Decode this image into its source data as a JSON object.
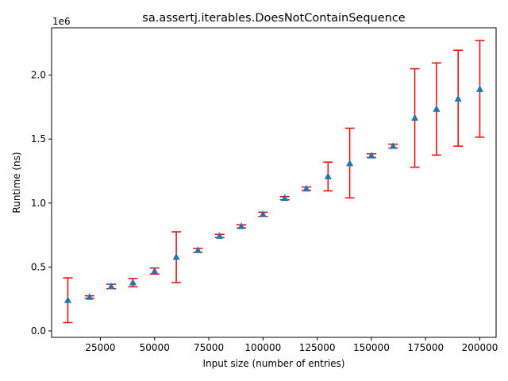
{
  "chart_data": {
    "type": "scatter",
    "title": "sa.assertj.iterables.DoesNotContainSequence",
    "xlabel": "Input size (number of entries)",
    "ylabel": "Runtime (ns)",
    "y_offset_label": "1e6",
    "y_scale": 1000000,
    "xlim": [
      2500,
      207500
    ],
    "ylim": [
      -50000,
      2370000
    ],
    "x_ticks": [
      25000,
      50000,
      75000,
      100000,
      125000,
      150000,
      175000,
      200000
    ],
    "x_tick_labels": [
      "25000",
      "50000",
      "75000",
      "100000",
      "125000",
      "150000",
      "175000",
      "200000"
    ],
    "y_ticks": [
      0,
      500000,
      1000000,
      1500000,
      2000000
    ],
    "y_tick_labels": [
      "0.0",
      "0.5",
      "1.0",
      "1.5",
      "2.0"
    ],
    "marker_color": "#1f77b4",
    "error_color": "#ff0000",
    "series": [
      {
        "name": "runtime",
        "x": [
          10000,
          20000,
          30000,
          40000,
          50000,
          60000,
          70000,
          80000,
          90000,
          100000,
          110000,
          120000,
          130000,
          140000,
          150000,
          160000,
          170000,
          180000,
          190000,
          200000
        ],
        "y": [
          240000,
          265000,
          348000,
          378000,
          468000,
          578000,
          630000,
          742000,
          818000,
          912000,
          1038000,
          1112000,
          1208000,
          1310000,
          1370000,
          1445000,
          1665000,
          1735000,
          1815000,
          1890000
        ],
        "ylow": [
          65000,
          255000,
          330000,
          345000,
          445000,
          378000,
          615000,
          730000,
          805000,
          895000,
          1025000,
          1100000,
          1095000,
          1040000,
          1355000,
          1430000,
          1280000,
          1375000,
          1445000,
          1515000
        ],
        "yhigh": [
          415000,
          275000,
          365000,
          410000,
          492000,
          775000,
          645000,
          755000,
          830000,
          928000,
          1050000,
          1125000,
          1320000,
          1585000,
          1385000,
          1460000,
          2050000,
          2095000,
          2195000,
          2270000
        ]
      }
    ]
  }
}
